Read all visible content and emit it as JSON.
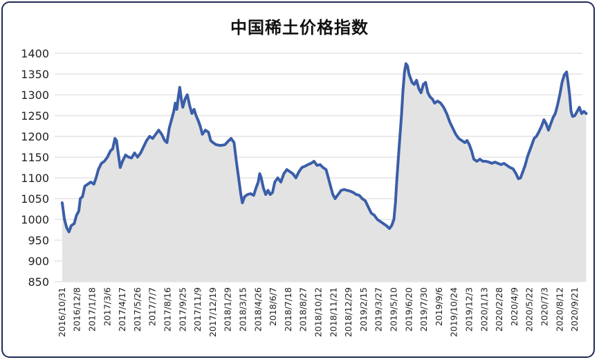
{
  "chart_data": {
    "type": "area",
    "title": "中国稀土价格指数",
    "xlabel": "",
    "ylabel": "",
    "ylim": [
      850,
      1400
    ],
    "yticks": [
      850,
      900,
      950,
      1000,
      1050,
      1100,
      1150,
      1200,
      1250,
      1300,
      1350,
      1400
    ],
    "grid": true,
    "legend": "none",
    "line_color": "#3a5ea8",
    "fill_color": "#e3e3e3",
    "tick_labels": [
      "2016/10/31",
      "2016/12/8",
      "2017/1/18",
      "2017/3/6",
      "2017/4/17",
      "2017/5/26",
      "2017/7/7",
      "2017/8/16",
      "2017/9/25",
      "2017/11/9",
      "2017/12/19",
      "2018/1/29",
      "2018/3/15",
      "2018/4/26",
      "2018/6/7",
      "2018/7/18",
      "2018/8/27",
      "2018/10/12",
      "2018/11/21",
      "2018/12/29",
      "2019/2/15",
      "2019/3/27",
      "2019/5/10",
      "2019/6/20",
      "2019/7/30",
      "2019/9/6",
      "2019/10/24",
      "2019/12/3",
      "2020/1/13",
      "2020/2/28",
      "2020/4/9",
      "2020/5/22",
      "2020/7/3",
      "2020/8/12",
      "2020/9/21"
    ],
    "series": [
      {
        "values": [
          [
            0,
            1040
          ],
          [
            0.15,
            1000
          ],
          [
            0.3,
            980
          ],
          [
            0.45,
            970
          ],
          [
            0.6,
            985
          ],
          [
            0.8,
            990
          ],
          [
            0.95,
            1010
          ],
          [
            1.1,
            1020
          ],
          [
            1.2,
            1050
          ],
          [
            1.35,
            1055
          ],
          [
            1.5,
            1080
          ],
          [
            1.7,
            1085
          ],
          [
            1.9,
            1090
          ],
          [
            2.1,
            1085
          ],
          [
            2.25,
            1100
          ],
          [
            2.4,
            1120
          ],
          [
            2.6,
            1135
          ],
          [
            2.8,
            1140
          ],
          [
            3.0,
            1150
          ],
          [
            3.2,
            1165
          ],
          [
            3.35,
            1170
          ],
          [
            3.5,
            1195
          ],
          [
            3.6,
            1190
          ],
          [
            3.75,
            1150
          ],
          [
            3.85,
            1125
          ],
          [
            4.0,
            1140
          ],
          [
            4.2,
            1155
          ],
          [
            4.4,
            1150
          ],
          [
            4.6,
            1148
          ],
          [
            4.8,
            1160
          ],
          [
            5.0,
            1150
          ],
          [
            5.2,
            1160
          ],
          [
            5.4,
            1175
          ],
          [
            5.6,
            1190
          ],
          [
            5.8,
            1200
          ],
          [
            6.0,
            1195
          ],
          [
            6.2,
            1205
          ],
          [
            6.4,
            1215
          ],
          [
            6.6,
            1205
          ],
          [
            6.8,
            1190
          ],
          [
            6.95,
            1185
          ],
          [
            7.1,
            1220
          ],
          [
            7.25,
            1240
          ],
          [
            7.4,
            1260
          ],
          [
            7.5,
            1280
          ],
          [
            7.6,
            1265
          ],
          [
            7.7,
            1295
          ],
          [
            7.8,
            1318
          ],
          [
            7.9,
            1290
          ],
          [
            8.0,
            1270
          ],
          [
            8.15,
            1290
          ],
          [
            8.3,
            1300
          ],
          [
            8.45,
            1275
          ],
          [
            8.6,
            1255
          ],
          [
            8.75,
            1265
          ],
          [
            8.9,
            1248
          ],
          [
            9.0,
            1240
          ],
          [
            9.15,
            1225
          ],
          [
            9.3,
            1205
          ],
          [
            9.5,
            1215
          ],
          [
            9.7,
            1210
          ],
          [
            9.85,
            1190
          ],
          [
            10.0,
            1185
          ],
          [
            10.2,
            1180
          ],
          [
            10.5,
            1178
          ],
          [
            10.8,
            1180
          ],
          [
            11.0,
            1188
          ],
          [
            11.2,
            1195
          ],
          [
            11.4,
            1185
          ],
          [
            11.55,
            1140
          ],
          [
            11.7,
            1100
          ],
          [
            11.85,
            1060
          ],
          [
            11.95,
            1040
          ],
          [
            12.1,
            1055
          ],
          [
            12.3,
            1060
          ],
          [
            12.5,
            1062
          ],
          [
            12.7,
            1058
          ],
          [
            12.85,
            1075
          ],
          [
            13.0,
            1090
          ],
          [
            13.1,
            1110
          ],
          [
            13.2,
            1100
          ],
          [
            13.35,
            1075
          ],
          [
            13.5,
            1060
          ],
          [
            13.65,
            1070
          ],
          [
            13.8,
            1060
          ],
          [
            13.95,
            1065
          ],
          [
            14.1,
            1090
          ],
          [
            14.3,
            1100
          ],
          [
            14.5,
            1090
          ],
          [
            14.7,
            1110
          ],
          [
            14.9,
            1120
          ],
          [
            15.1,
            1115
          ],
          [
            15.3,
            1110
          ],
          [
            15.5,
            1100
          ],
          [
            15.7,
            1115
          ],
          [
            15.9,
            1125
          ],
          [
            16.1,
            1128
          ],
          [
            16.3,
            1132
          ],
          [
            16.5,
            1135
          ],
          [
            16.7,
            1140
          ],
          [
            16.9,
            1130
          ],
          [
            17.1,
            1132
          ],
          [
            17.3,
            1125
          ],
          [
            17.5,
            1120
          ],
          [
            17.65,
            1100
          ],
          [
            17.8,
            1080
          ],
          [
            17.95,
            1060
          ],
          [
            18.1,
            1050
          ],
          [
            18.3,
            1060
          ],
          [
            18.5,
            1070
          ],
          [
            18.7,
            1072
          ],
          [
            18.9,
            1070
          ],
          [
            19.1,
            1068
          ],
          [
            19.3,
            1065
          ],
          [
            19.5,
            1060
          ],
          [
            19.7,
            1058
          ],
          [
            19.9,
            1050
          ],
          [
            20.1,
            1045
          ],
          [
            20.3,
            1030
          ],
          [
            20.5,
            1015
          ],
          [
            20.7,
            1010
          ],
          [
            20.9,
            1000
          ],
          [
            21.1,
            995
          ],
          [
            21.3,
            990
          ],
          [
            21.5,
            985
          ],
          [
            21.7,
            978
          ],
          [
            21.85,
            985
          ],
          [
            22.0,
            1000
          ],
          [
            22.1,
            1040
          ],
          [
            22.2,
            1100
          ],
          [
            22.3,
            1150
          ],
          [
            22.4,
            1200
          ],
          [
            22.5,
            1250
          ],
          [
            22.6,
            1310
          ],
          [
            22.7,
            1355
          ],
          [
            22.8,
            1375
          ],
          [
            22.9,
            1370
          ],
          [
            23.0,
            1350
          ],
          [
            23.1,
            1340
          ],
          [
            23.2,
            1330
          ],
          [
            23.35,
            1325
          ],
          [
            23.5,
            1335
          ],
          [
            23.65,
            1315
          ],
          [
            23.8,
            1305
          ],
          [
            23.95,
            1325
          ],
          [
            24.1,
            1330
          ],
          [
            24.25,
            1305
          ],
          [
            24.4,
            1295
          ],
          [
            24.55,
            1290
          ],
          [
            24.7,
            1280
          ],
          [
            24.9,
            1285
          ],
          [
            25.1,
            1280
          ],
          [
            25.3,
            1270
          ],
          [
            25.5,
            1255
          ],
          [
            25.7,
            1235
          ],
          [
            25.9,
            1220
          ],
          [
            26.1,
            1205
          ],
          [
            26.3,
            1195
          ],
          [
            26.5,
            1190
          ],
          [
            26.7,
            1185
          ],
          [
            26.85,
            1190
          ],
          [
            27.0,
            1180
          ],
          [
            27.15,
            1165
          ],
          [
            27.3,
            1145
          ],
          [
            27.5,
            1140
          ],
          [
            27.7,
            1145
          ],
          [
            27.9,
            1140
          ],
          [
            28.1,
            1140
          ],
          [
            28.3,
            1138
          ],
          [
            28.5,
            1135
          ],
          [
            28.7,
            1138
          ],
          [
            28.9,
            1135
          ],
          [
            29.1,
            1132
          ],
          [
            29.3,
            1135
          ],
          [
            29.5,
            1130
          ],
          [
            29.7,
            1125
          ],
          [
            29.9,
            1122
          ],
          [
            30.1,
            1110
          ],
          [
            30.25,
            1098
          ],
          [
            30.4,
            1100
          ],
          [
            30.55,
            1115
          ],
          [
            30.7,
            1130
          ],
          [
            30.85,
            1150
          ],
          [
            31.0,
            1165
          ],
          [
            31.15,
            1180
          ],
          [
            31.3,
            1195
          ],
          [
            31.45,
            1200
          ],
          [
            31.6,
            1210
          ],
          [
            31.8,
            1225
          ],
          [
            31.95,
            1240
          ],
          [
            32.1,
            1230
          ],
          [
            32.25,
            1215
          ],
          [
            32.4,
            1230
          ],
          [
            32.55,
            1245
          ],
          [
            32.7,
            1255
          ],
          [
            32.85,
            1275
          ],
          [
            33.0,
            1300
          ],
          [
            33.15,
            1330
          ],
          [
            33.3,
            1348
          ],
          [
            33.45,
            1355
          ],
          [
            33.55,
            1330
          ],
          [
            33.65,
            1300
          ],
          [
            33.75,
            1260
          ],
          [
            33.85,
            1248
          ],
          [
            34.0,
            1250
          ],
          [
            34.15,
            1260
          ],
          [
            34.3,
            1270
          ],
          [
            34.45,
            1255
          ],
          [
            34.6,
            1260
          ],
          [
            34.75,
            1255
          ]
        ]
      }
    ]
  }
}
